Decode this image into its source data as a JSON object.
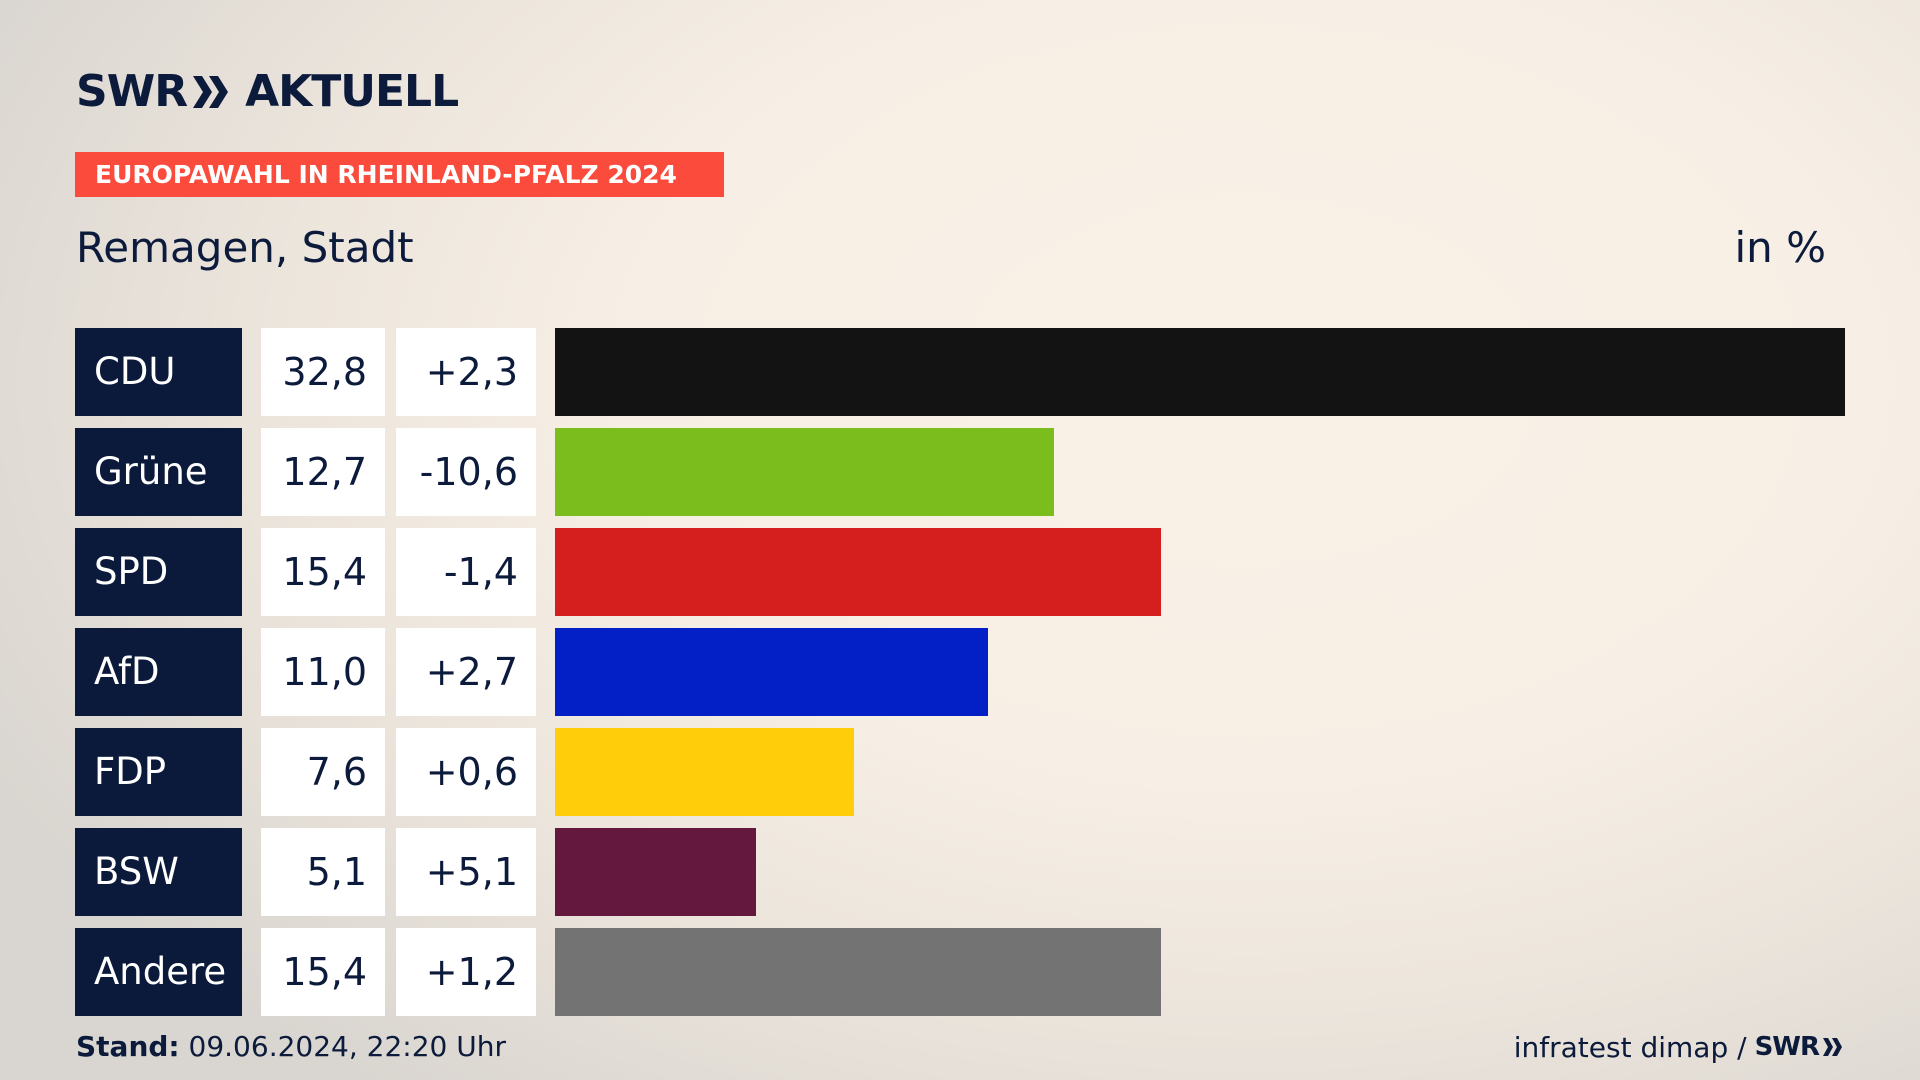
{
  "header": {
    "logo_text_left": "SWR",
    "logo_text_right": "AKTUELL",
    "banner": "EUROPAWAHL IN RHEINLAND-PFALZ 2024",
    "subtitle": "Remagen, Stadt",
    "unit": "in %"
  },
  "chart_data": {
    "type": "bar",
    "orientation": "horizontal",
    "title": "EUROPAWAHL IN RHEINLAND-PFALZ 2024",
    "subtitle": "Remagen, Stadt",
    "unit": "in %",
    "xlim": [
      0,
      32.8
    ],
    "rows": [
      {
        "party": "CDU",
        "value": 32.8,
        "value_label": "32,8",
        "diff_label": "+2,3",
        "color": "#131313"
      },
      {
        "party": "Grüne",
        "value": 12.7,
        "value_label": "12,7",
        "diff_label": "-10,6",
        "color": "#7bbd1c"
      },
      {
        "party": "SPD",
        "value": 15.4,
        "value_label": "15,4",
        "diff_label": "-1,4",
        "color": "#d51f1f"
      },
      {
        "party": "AfD",
        "value": 11.0,
        "value_label": "11,0",
        "diff_label": "+2,7",
        "color": "#0320c6"
      },
      {
        "party": "FDP",
        "value": 7.6,
        "value_label": "7,6",
        "diff_label": "+0,6",
        "color": "#ffcd09"
      },
      {
        "party": "BSW",
        "value": 5.1,
        "value_label": "5,1",
        "diff_label": "+5,1",
        "color": "#65183e"
      },
      {
        "party": "Andere",
        "value": 15.4,
        "value_label": "15,4",
        "diff_label": "+1,2",
        "color": "#737373"
      }
    ]
  },
  "footer": {
    "stand_label": "Stand:",
    "stand_value": "09.06.2024, 22:20 Uhr",
    "source": "infratest dimap /",
    "source_logo": "SWR"
  }
}
